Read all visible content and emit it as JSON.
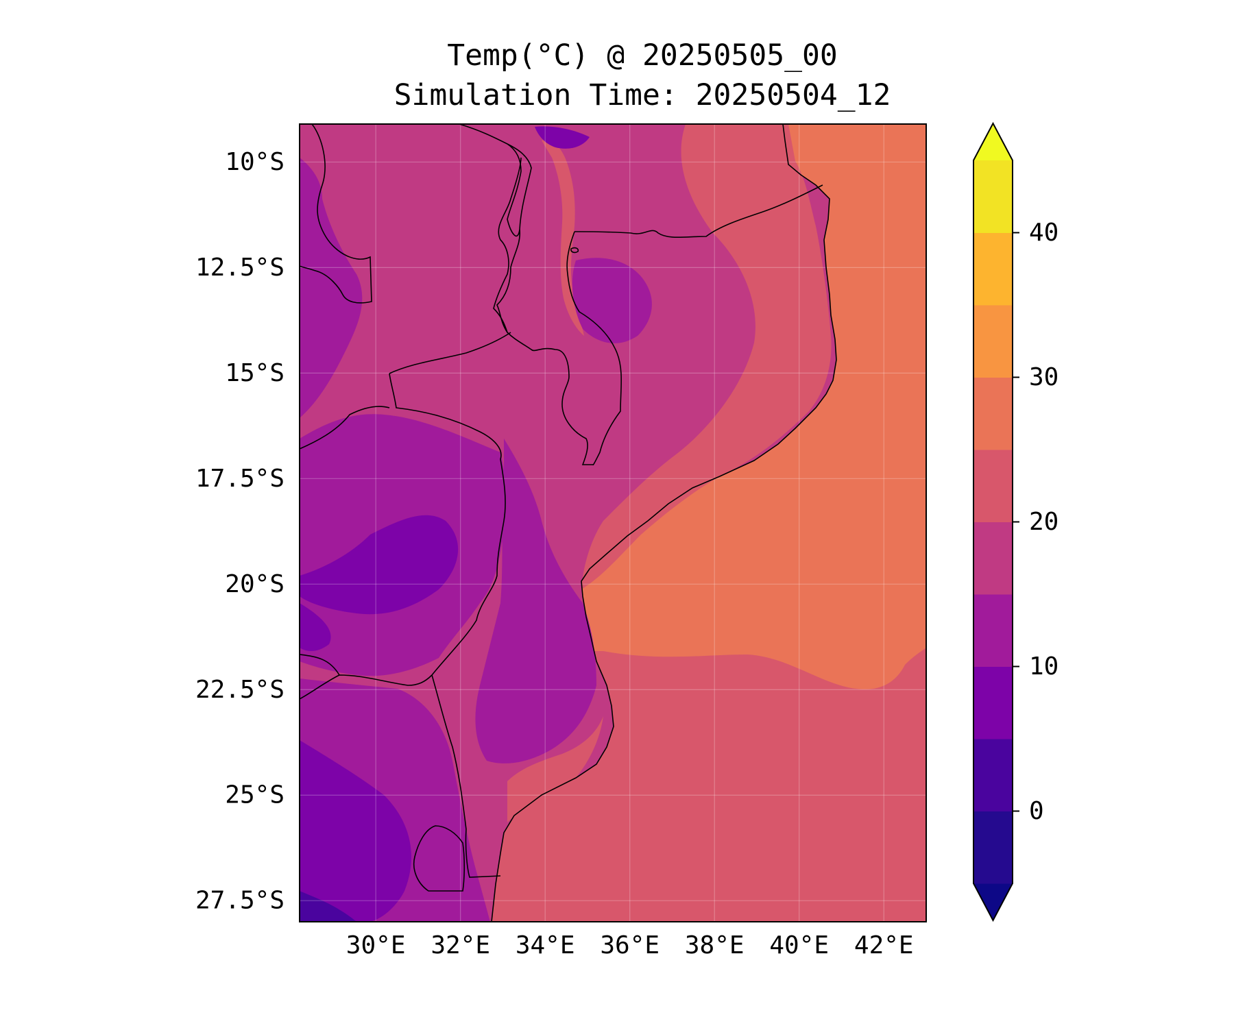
{
  "title": {
    "line1": "Temp(°C) @ 20250505_00",
    "line2": "Simulation Time: 20250504_12"
  },
  "map": {
    "region": "Mozambique and surrounding southeast Africa",
    "lon_range": [
      28.2,
      43.0
    ],
    "lat_range": [
      -28.0,
      -9.1
    ],
    "lat_ticks": [
      {
        "value": -10,
        "label": "10°S"
      },
      {
        "value": -12.5,
        "label": "12.5°S"
      },
      {
        "value": -15,
        "label": "15°S"
      },
      {
        "value": -17.5,
        "label": "17.5°S"
      },
      {
        "value": -20,
        "label": "20°S"
      },
      {
        "value": -22.5,
        "label": "22.5°S"
      },
      {
        "value": -25,
        "label": "25°S"
      },
      {
        "value": -27.5,
        "label": "27.5°S"
      }
    ],
    "lon_ticks": [
      {
        "value": 30,
        "label": "30°E"
      },
      {
        "value": 32,
        "label": "32°E"
      },
      {
        "value": 34,
        "label": "34°E"
      },
      {
        "value": 36,
        "label": "36°E"
      },
      {
        "value": 38,
        "label": "38°E"
      },
      {
        "value": 40,
        "label": "40°E"
      },
      {
        "value": 42,
        "label": "42°E"
      }
    ],
    "gridlines": true
  },
  "colorbar": {
    "min": -5,
    "max": 45,
    "extend": "both",
    "levels": [
      {
        "from": -5,
        "to": 0,
        "color": "#250a8f"
      },
      {
        "from": 0,
        "to": 5,
        "color": "#4a049e"
      },
      {
        "from": 5,
        "to": 10,
        "color": "#7d03a8"
      },
      {
        "from": 10,
        "to": 15,
        "color": "#a11b9b"
      },
      {
        "from": 15,
        "to": 20,
        "color": "#c03a83"
      },
      {
        "from": 20,
        "to": 25,
        "color": "#d8576b"
      },
      {
        "from": 25,
        "to": 30,
        "color": "#ea7457"
      },
      {
        "from": 30,
        "to": 35,
        "color": "#f89541"
      },
      {
        "from": 35,
        "to": 40,
        "color": "#fdb42f"
      },
      {
        "from": 40,
        "to": 45,
        "color": "#f2e324"
      }
    ],
    "under_color": "#0d0887",
    "over_color": "#f0f921",
    "ticks": [
      {
        "value": 0,
        "label": "0"
      },
      {
        "value": 10,
        "label": "10"
      },
      {
        "value": 20,
        "label": "20"
      },
      {
        "value": 30,
        "label": "30"
      },
      {
        "value": 40,
        "label": "40"
      }
    ]
  }
}
